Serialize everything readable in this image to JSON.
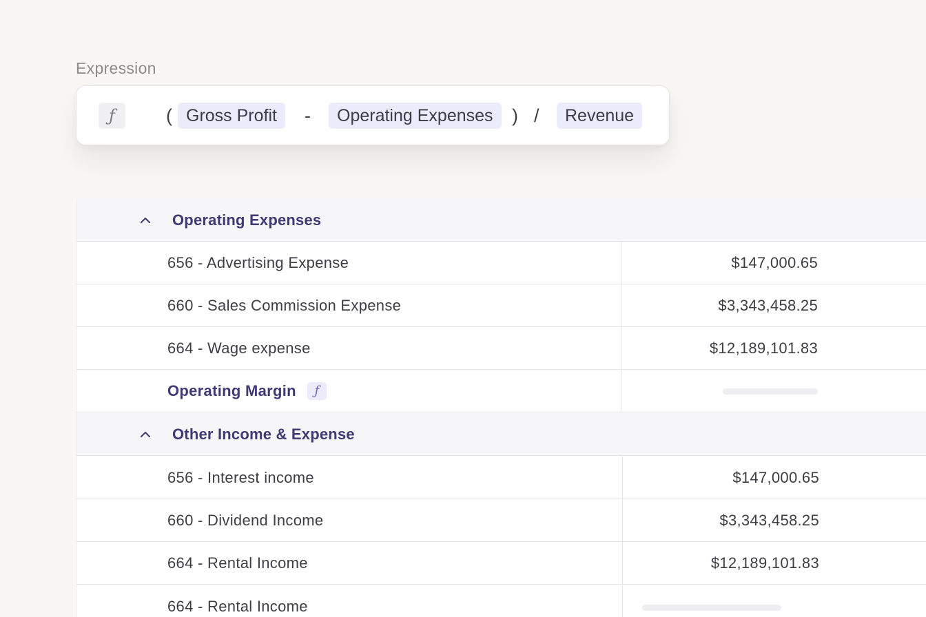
{
  "expression": {
    "label": "Expression",
    "fx_icon": "function-icon",
    "open_paren": "(",
    "token_1": "Gross Profit",
    "operator_1": "-",
    "token_2": "Operating Expenses",
    "close_paren": ")",
    "operator_2": "/",
    "token_3": "Revenue"
  },
  "table": {
    "groups": [
      {
        "label": "Operating Expenses",
        "rows": [
          {
            "name": "656 - Advertising Expense",
            "value": "$147,000.65"
          },
          {
            "name": "660 - Sales Commission Expense",
            "value": "$3,343,458.25"
          },
          {
            "name": "664 - Wage expense",
            "value": "$12,189,101.83"
          }
        ],
        "formula_row": {
          "name": "Operating Margin",
          "value_state": "loading"
        }
      },
      {
        "label": "Other Income & Expense",
        "rows": [
          {
            "name": "656 - Interest income",
            "value": "$147,000.65"
          },
          {
            "name": "660 - Dividend Income",
            "value": "$3,343,458.25"
          },
          {
            "name": "664 - Rental Income",
            "value": "$12,189,101.83"
          },
          {
            "name": "664 - Rental Income",
            "value_state": "loading"
          }
        ]
      }
    ]
  },
  "colors": {
    "accent": "#3f3a75",
    "pill": "#eaebfb",
    "background": "#f8f7f4"
  }
}
